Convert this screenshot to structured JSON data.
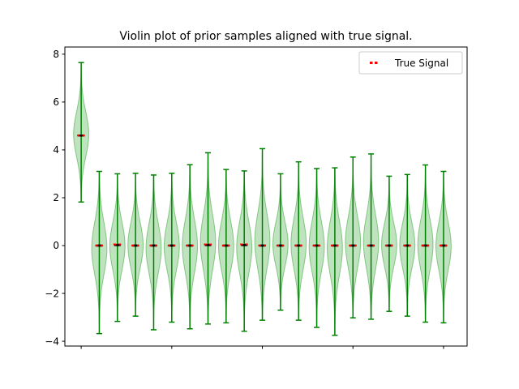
{
  "chart_data": {
    "type": "violin",
    "title": "Violin plot of prior samples aligned with true signal.",
    "xlabel": "",
    "ylabel": "",
    "ylim": [
      -4.2,
      8.3
    ],
    "yticks": [
      -4,
      -2,
      0,
      2,
      4,
      6,
      8
    ],
    "ytick_labels": [
      "−4",
      "−2",
      "0",
      "2",
      "4",
      "6",
      "8"
    ],
    "x": [
      0,
      1,
      2,
      3,
      4,
      5,
      6,
      7,
      8,
      9,
      10,
      11,
      12,
      13,
      14,
      15,
      16,
      17,
      18,
      19,
      20
    ],
    "xticks": [
      0,
      5,
      10,
      15,
      20
    ],
    "violin_color": "#2ca02c",
    "violin_line_color": "#008000",
    "signal_color": "#ff0000",
    "legend": {
      "label": "True Signal",
      "placement": "upper right"
    },
    "violins": [
      {
        "min": 1.82,
        "max": 7.65,
        "median": 4.6,
        "true_signal": 4.6
      },
      {
        "min": -3.68,
        "max": 3.1,
        "median": 0.0,
        "true_signal": 0.0
      },
      {
        "min": -3.17,
        "max": 3.0,
        "median": 0.02,
        "true_signal": 0.05
      },
      {
        "min": -2.95,
        "max": 3.02,
        "median": 0.0,
        "true_signal": 0.0
      },
      {
        "min": -3.52,
        "max": 2.95,
        "median": 0.0,
        "true_signal": 0.0
      },
      {
        "min": -3.2,
        "max": 3.02,
        "median": 0.0,
        "true_signal": 0.0
      },
      {
        "min": -3.48,
        "max": 3.38,
        "median": 0.0,
        "true_signal": 0.0
      },
      {
        "min": -3.28,
        "max": 3.88,
        "median": 0.02,
        "true_signal": 0.05
      },
      {
        "min": -3.23,
        "max": 3.18,
        "median": 0.0,
        "true_signal": 0.0
      },
      {
        "min": -3.58,
        "max": 3.12,
        "median": 0.02,
        "true_signal": 0.05
      },
      {
        "min": -3.12,
        "max": 4.05,
        "median": 0.0,
        "true_signal": 0.0
      },
      {
        "min": -2.7,
        "max": 3.0,
        "median": 0.0,
        "true_signal": 0.0
      },
      {
        "min": -3.12,
        "max": 3.5,
        "median": 0.0,
        "true_signal": 0.0
      },
      {
        "min": -3.42,
        "max": 3.22,
        "median": 0.0,
        "true_signal": 0.0
      },
      {
        "min": -3.75,
        "max": 3.25,
        "median": 0.0,
        "true_signal": 0.0
      },
      {
        "min": -3.02,
        "max": 3.7,
        "median": 0.0,
        "true_signal": 0.0
      },
      {
        "min": -3.08,
        "max": 3.83,
        "median": 0.0,
        "true_signal": 0.0
      },
      {
        "min": -2.75,
        "max": 2.9,
        "median": 0.0,
        "true_signal": 0.0
      },
      {
        "min": -2.95,
        "max": 2.97,
        "median": 0.0,
        "true_signal": 0.0
      },
      {
        "min": -3.2,
        "max": 3.37,
        "median": 0.0,
        "true_signal": 0.0
      },
      {
        "min": -3.23,
        "max": 3.1,
        "median": 0.0,
        "true_signal": 0.0
      }
    ]
  }
}
